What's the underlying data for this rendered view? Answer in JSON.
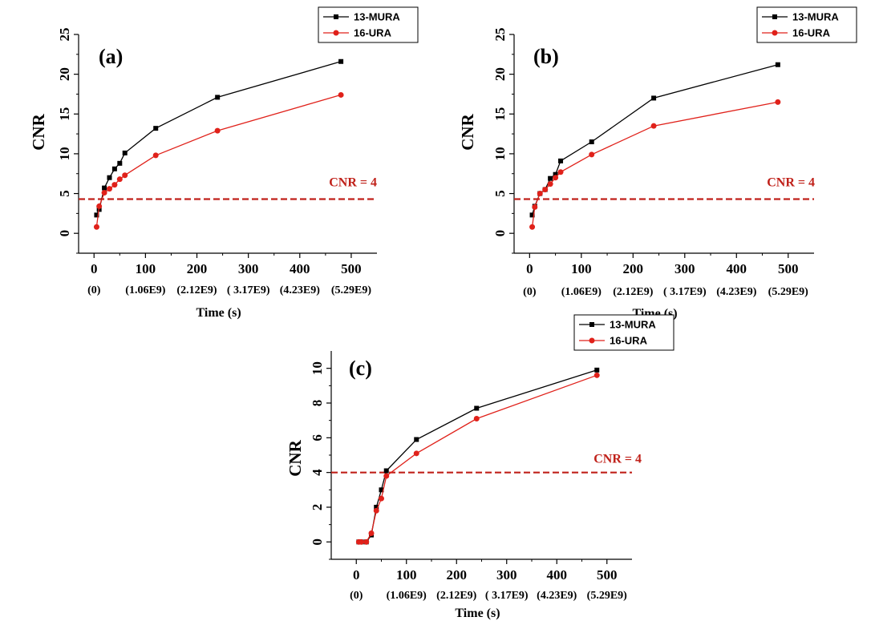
{
  "colors": {
    "series_black": "#000000",
    "series_red": "#e0211a",
    "threshold": "#c0211a",
    "axis": "#000000"
  },
  "chart_data": [
    {
      "type": "line",
      "panel_label": "(a)",
      "xlabel": "Time (s)",
      "ylabel": "CNR",
      "xlim": [
        -30,
        550
      ],
      "ylim": [
        -2.5,
        25
      ],
      "x_ticks": [
        0,
        100,
        200,
        300,
        400,
        500
      ],
      "y_ticks": [
        0,
        5,
        10,
        15,
        20,
        25
      ],
      "x_secondary_labels": [
        "(0)",
        "(1.06E9)",
        "(2.12E9)",
        "( 3.17E9)",
        "(4.23E9)",
        "(5.29E9)"
      ],
      "threshold": {
        "y": 4.3,
        "label": "CNR = 4"
      },
      "legend_position": "top-right",
      "series": [
        {
          "name": "13-MURA",
          "color": "#000000",
          "marker": "square",
          "x": [
            5,
            10,
            20,
            30,
            40,
            50,
            60,
            120,
            240,
            480
          ],
          "y": [
            2.3,
            3.0,
            5.7,
            7.0,
            8.1,
            8.8,
            10.1,
            13.2,
            17.1,
            21.6
          ]
        },
        {
          "name": "16-URA",
          "color": "#e0211a",
          "marker": "circle",
          "x": [
            5,
            10,
            20,
            30,
            40,
            50,
            60,
            120,
            240,
            480
          ],
          "y": [
            0.8,
            3.4,
            5.1,
            5.6,
            6.1,
            6.8,
            7.3,
            9.8,
            12.9,
            17.4
          ]
        }
      ]
    },
    {
      "type": "line",
      "panel_label": "(b)",
      "xlabel": "Time (s)",
      "ylabel": "CNR",
      "xlim": [
        -30,
        550
      ],
      "ylim": [
        -2.5,
        25
      ],
      "x_ticks": [
        0,
        100,
        200,
        300,
        400,
        500
      ],
      "y_ticks": [
        0,
        5,
        10,
        15,
        20,
        25
      ],
      "x_secondary_labels": [
        "(0)",
        "(1.06E9)",
        "(2.12E9)",
        "( 3.17E9)",
        "(4.23E9)",
        "(5.29E9)"
      ],
      "threshold": {
        "y": 4.3,
        "label": "CNR = 4"
      },
      "legend_position": "top-right",
      "series": [
        {
          "name": "13-MURA",
          "color": "#000000",
          "marker": "square",
          "x": [
            5,
            10,
            20,
            30,
            40,
            50,
            60,
            120,
            240,
            480
          ],
          "y": [
            2.3,
            3.4,
            5.0,
            5.5,
            6.9,
            7.4,
            9.1,
            11.5,
            17.0,
            21.2
          ]
        },
        {
          "name": "16-URA",
          "color": "#e0211a",
          "marker": "circle",
          "x": [
            5,
            10,
            20,
            30,
            40,
            50,
            60,
            120,
            240,
            480
          ],
          "y": [
            0.8,
            3.3,
            5.0,
            5.5,
            6.2,
            7.0,
            7.7,
            9.9,
            13.5,
            16.5
          ]
        }
      ]
    },
    {
      "type": "line",
      "panel_label": "(c)",
      "xlabel": "Time (s)",
      "ylabel": "CNR",
      "xlim": [
        -50,
        550
      ],
      "ylim": [
        -1,
        11
      ],
      "x_ticks": [
        0,
        100,
        200,
        300,
        400,
        500
      ],
      "y_ticks": [
        0,
        2,
        4,
        6,
        8,
        10
      ],
      "x_secondary_labels": [
        "(0)",
        "(1.06E9)",
        "(2.12E9)",
        "( 3.17E9)",
        "(4.23E9)",
        "(5.29E9)"
      ],
      "threshold": {
        "y": 4.0,
        "label": "CNR = 4"
      },
      "legend_position": "top-right",
      "series": [
        {
          "name": "13-MURA",
          "color": "#000000",
          "marker": "square",
          "x": [
            5,
            10,
            20,
            30,
            40,
            50,
            60,
            120,
            240,
            480
          ],
          "y": [
            0.0,
            0.0,
            0.0,
            0.4,
            2.0,
            3.0,
            4.1,
            5.9,
            7.7,
            9.9
          ]
        },
        {
          "name": "16-URA",
          "color": "#e0211a",
          "marker": "circle",
          "x": [
            5,
            10,
            20,
            30,
            40,
            50,
            60,
            120,
            240,
            480
          ],
          "y": [
            0.0,
            0.0,
            0.0,
            0.5,
            1.8,
            2.5,
            3.8,
            5.1,
            7.1,
            9.6
          ]
        }
      ]
    }
  ]
}
